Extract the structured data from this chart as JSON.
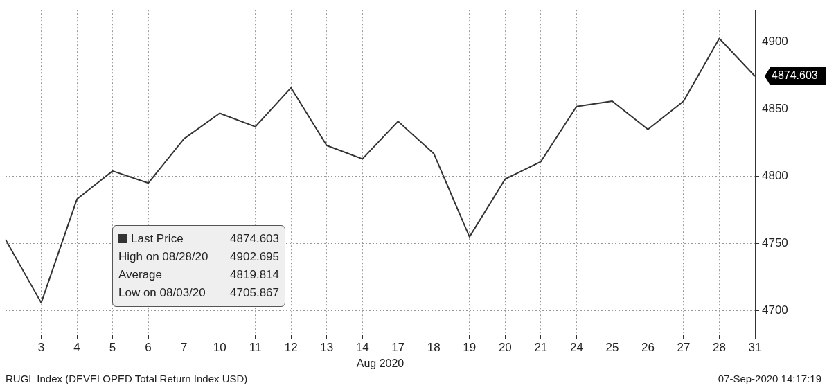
{
  "chart_data": {
    "type": "line",
    "xlabel": "Aug 2020",
    "categories": [
      null,
      "3",
      "4",
      "5",
      "6",
      "7",
      "10",
      "11",
      "12",
      "13",
      "14",
      "17",
      "18",
      "19",
      "20",
      "21",
      "24",
      "25",
      "26",
      "27",
      "28",
      "31"
    ],
    "series": [
      {
        "name": "Last Price",
        "color": "#333333",
        "values": [
          4753,
          4705.867,
          4783,
          4804,
          4795,
          4828,
          4847,
          4837,
          4866,
          4823,
          4813,
          4841,
          4817,
          4755,
          4798,
          4811,
          4852,
          4856,
          4835,
          4856,
          4902.695,
          4874.603
        ]
      }
    ],
    "ylim": [
      4682,
      4924
    ],
    "yticks": [
      4700,
      4750,
      4800,
      4850,
      4900
    ],
    "grid": true,
    "legend": "bottom left",
    "marker": "none",
    "line_style": "solid",
    "annotations": [
      {
        "text": "4874.603",
        "x": "31",
        "y": 4874.603
      },
      "4874.603",
      "High on 08/28/20",
      "4902.695",
      "Average",
      "4819.814",
      "Low on 08/03/20",
      "4705.867",
      "RUGL Index (DEVELOPED Total Return Index USD)",
      "07-Sep-2020 14:17:19"
    ]
  }
}
